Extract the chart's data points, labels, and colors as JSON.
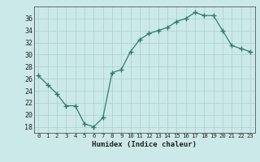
{
  "x": [
    0,
    1,
    2,
    3,
    4,
    5,
    6,
    7,
    8,
    9,
    10,
    11,
    12,
    13,
    14,
    15,
    16,
    17,
    18,
    19,
    20,
    21,
    22,
    23
  ],
  "y": [
    26.5,
    25.0,
    23.5,
    21.5,
    21.5,
    18.5,
    18.0,
    19.5,
    27.0,
    27.5,
    30.5,
    32.5,
    33.5,
    34.0,
    34.5,
    35.5,
    36.0,
    37.0,
    36.5,
    36.5,
    34.0,
    31.5,
    31.0,
    30.5
  ],
  "xlabel": "Humidex (Indice chaleur)",
  "ylim": [
    17,
    38
  ],
  "xlim": [
    -0.5,
    23.5
  ],
  "yticks": [
    18,
    20,
    22,
    24,
    26,
    28,
    30,
    32,
    34,
    36
  ],
  "xticks": [
    0,
    1,
    2,
    3,
    4,
    5,
    6,
    7,
    8,
    9,
    10,
    11,
    12,
    13,
    14,
    15,
    16,
    17,
    18,
    19,
    20,
    21,
    22,
    23
  ],
  "xtick_labels": [
    "0",
    "1",
    "2",
    "3",
    "4",
    "5",
    "6",
    "7",
    "8",
    "9",
    "10",
    "11",
    "12",
    "13",
    "14",
    "15",
    "16",
    "17",
    "18",
    "19",
    "20",
    "21",
    "22",
    "23"
  ],
  "line_color": "#2d7d6b",
  "marker_color": "#2d7d6b",
  "bg_color": "#cce9e9",
  "grid_color": "#aacfcf",
  "xlabel_fontsize": 6.5,
  "ytick_fontsize": 6.0,
  "xtick_fontsize": 5.2
}
